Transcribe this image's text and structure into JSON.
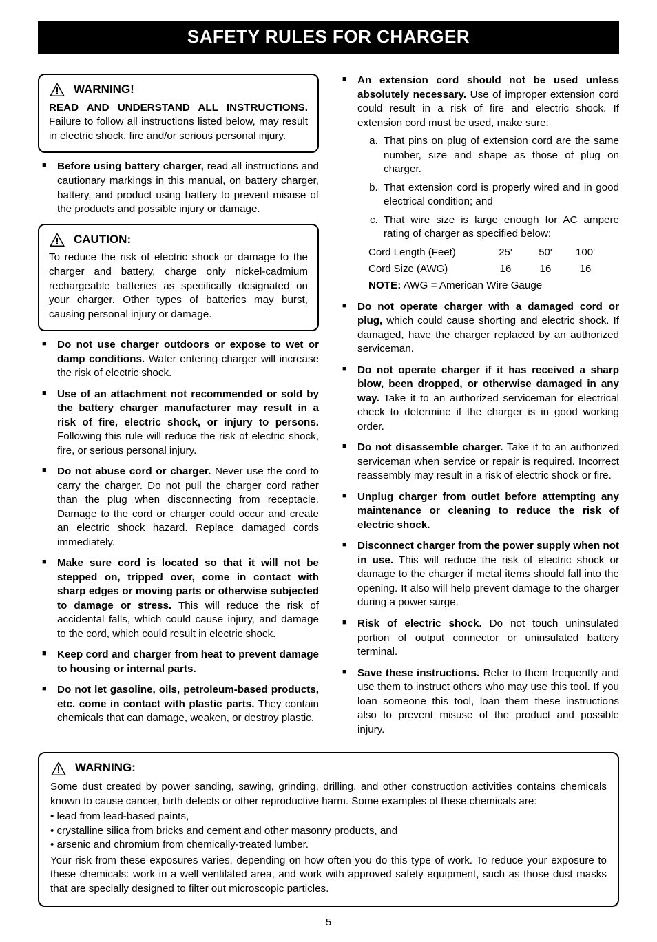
{
  "banner": "SAFETY RULES FOR CHARGER",
  "pagenum": "5",
  "left": {
    "warning_box": {
      "title": "WARNING!",
      "lead_bold": "READ AND UNDERSTAND ALL INSTRUCTIONS.",
      "lead_rest": " Failure to follow all instructions listed below, may result in electric shock, fire and/or serious personal injury."
    },
    "top_bullet": {
      "bold": "Before using battery charger,",
      "rest": " read all instructions and cautionary markings in this manual, on battery charger, battery, and product using battery to prevent misuse of the products and possible injury or damage."
    },
    "caution_box": {
      "title": "CAUTION:",
      "body": "To reduce the risk of electric shock or damage to the charger and battery, charge only nickel-cadmium rechargeable batteries as specifically designated on your charger. Other types of batteries may burst, causing personal injury or damage."
    },
    "bullets": [
      {
        "bold": "Do not use charger outdoors or expose to wet or damp conditions.",
        "rest": " Water entering charger will increase the risk of electric shock."
      },
      {
        "bold": "Use of an attachment not recommended or sold by the battery charger manufacturer may result in a risk of fire, electric shock, or injury to persons.",
        "rest": " Following this rule will reduce the risk of electric shock, fire, or serious personal injury."
      },
      {
        "bold": "Do not abuse cord or charger.",
        "rest": " Never use the cord to carry the charger. Do not pull the charger cord rather than the plug when disconnecting from receptacle. Damage to the cord or charger could occur and create an electric shock hazard. Replace damaged cords immediately."
      },
      {
        "bold": "Make sure cord is located so that it will not be stepped on, tripped over, come in contact with sharp edges or moving parts or otherwise subjected to damage or stress.",
        "rest": " This will reduce the risk of accidental falls, which could cause injury, and damage to the cord, which could result in electric shock."
      },
      {
        "bold": "Keep cord and charger from heat to prevent damage to housing or internal parts.",
        "rest": ""
      },
      {
        "bold": "Do not let gasoline, oils, petroleum-based products, etc. come in contact with plastic parts.",
        "rest": " They contain chemicals that can damage, weaken, or destroy plastic."
      }
    ]
  },
  "right": {
    "ext_cord": {
      "bold": "An extension cord should not be used unless absolutely necessary.",
      "rest": " Use of improper extension cord could result in a risk of fire and electric shock. If extension cord must be used, make sure:",
      "letters": [
        "That pins on plug of extension cord are the same number, size and shape as those of plug on charger.",
        "That extension cord is properly wired and in good electrical condition; and",
        "That wire size is large enough for AC ampere rating of charger as specified below:"
      ],
      "table": {
        "rows": [
          {
            "label": "Cord Length (Feet)",
            "v1": "25'",
            "v2": "50'",
            "v3": "100'"
          },
          {
            "label": "Cord Size (AWG)",
            "v1": "16",
            "v2": "16",
            "v3": "16"
          }
        ],
        "note_bold": "NOTE:",
        "note_rest": " AWG = American Wire Gauge"
      }
    },
    "bullets": [
      {
        "bold": "Do not operate charger with a damaged cord or plug,",
        "rest": " which could cause shorting and electric shock. If damaged, have the charger replaced by an authorized serviceman."
      },
      {
        "bold": "Do not operate charger if it has received a sharp blow, been dropped, or otherwise damaged in any way.",
        "rest": " Take it to an authorized serviceman for electrical check to determine if the charger is in good working order."
      },
      {
        "bold": "Do not disassemble charger.",
        "rest": " Take it to an authorized serviceman when service or repair is required. Incorrect reassembly may result in a risk of electric shock or fire."
      },
      {
        "bold": "Unplug charger from outlet before attempting any maintenance or cleaning to reduce the risk of electric shock.",
        "rest": ""
      },
      {
        "bold": "Disconnect charger from the power supply when not in use.",
        "rest": " This will reduce the risk of electric shock or damage to the charger if metal items should fall into the opening. It also will help prevent damage to the charger during a power surge."
      },
      {
        "bold": "Risk of electric shock.",
        "rest": " Do not touch uninsulated portion of output connector or uninsulated battery terminal."
      },
      {
        "bold": "Save these instructions.",
        "rest": " Refer to them frequently and use them to instruct others who may use this tool. If you loan someone this tool, loan them these instructions also to prevent misuse of the product and possible injury."
      }
    ]
  },
  "bottom_warning": {
    "title": "WARNING:",
    "para1": "Some dust created by power sanding, sawing, grinding, drilling, and other construction activities contains chemicals known to cause cancer, birth defects or other reproductive harm. Some examples of these chemicals are:",
    "items": [
      "lead from lead-based paints,",
      "crystalline silica from bricks and cement and other masonry products, and",
      "arsenic and chromium from chemically-treated lumber."
    ],
    "para2": "Your risk from these exposures varies, depending on how often you do this type of work. To reduce your exposure to these chemicals: work in a well ventilated area, and work with approved safety equipment, such as those dust masks that are specially designed to filter out microscopic particles."
  }
}
